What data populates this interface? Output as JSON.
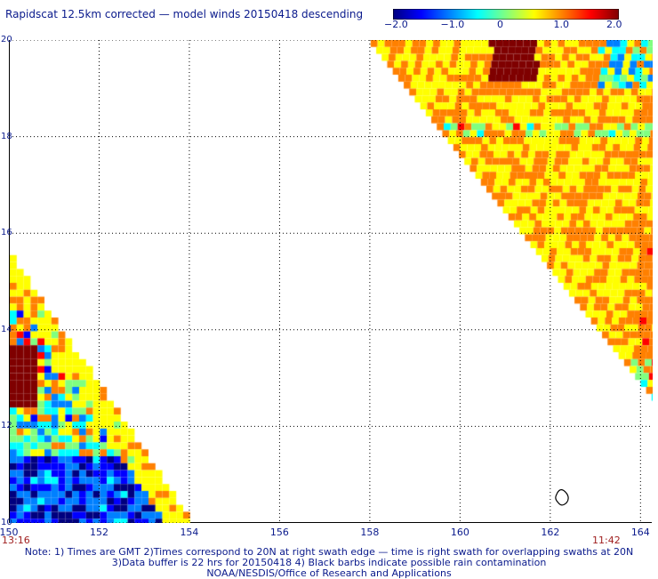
{
  "title": "Rapidscat 12.5km corrected — model winds 20150418 descending",
  "colorbar": {
    "min": -2.0,
    "max": 2.0,
    "tick_labels": [
      "−2.0",
      "−1.0",
      "0",
      "1.0",
      "2.0"
    ],
    "tick_values": [
      -2.0,
      -1.0,
      0,
      1.0,
      2.0
    ],
    "colors": [
      "#00007f",
      "#0000ff",
      "#0080ff",
      "#00ffff",
      "#80ff80",
      "#ffff00",
      "#ff8000",
      "#ff0000",
      "#7f0000"
    ]
  },
  "axes": {
    "lon_labels": [
      "150",
      "152",
      "154",
      "156",
      "158",
      "160",
      "162",
      "164"
    ],
    "lon_values": [
      150,
      152,
      154,
      156,
      158,
      160,
      162,
      164
    ],
    "lat_labels": [
      "20",
      "18",
      "16",
      "14",
      "12",
      "10"
    ],
    "lat_values": [
      20,
      18,
      16,
      14,
      12,
      10
    ],
    "lon_range": [
      150,
      164.25
    ],
    "lat_range": [
      10,
      20
    ],
    "grid": "dotted"
  },
  "times": {
    "left": "13:16",
    "right": "11:42"
  },
  "notes": {
    "line1": "Note: 1) Times are GMT 2)Times correspond to 20N at right swath edge — time is right swath for overlapping swaths at 20N",
    "line2": "3)Data buffer is 22 hrs for 20150418 4) Black barbs indicate possible rain contamination",
    "line3": "NOAA/NESDIS/Office of Research and Applications"
  }
}
